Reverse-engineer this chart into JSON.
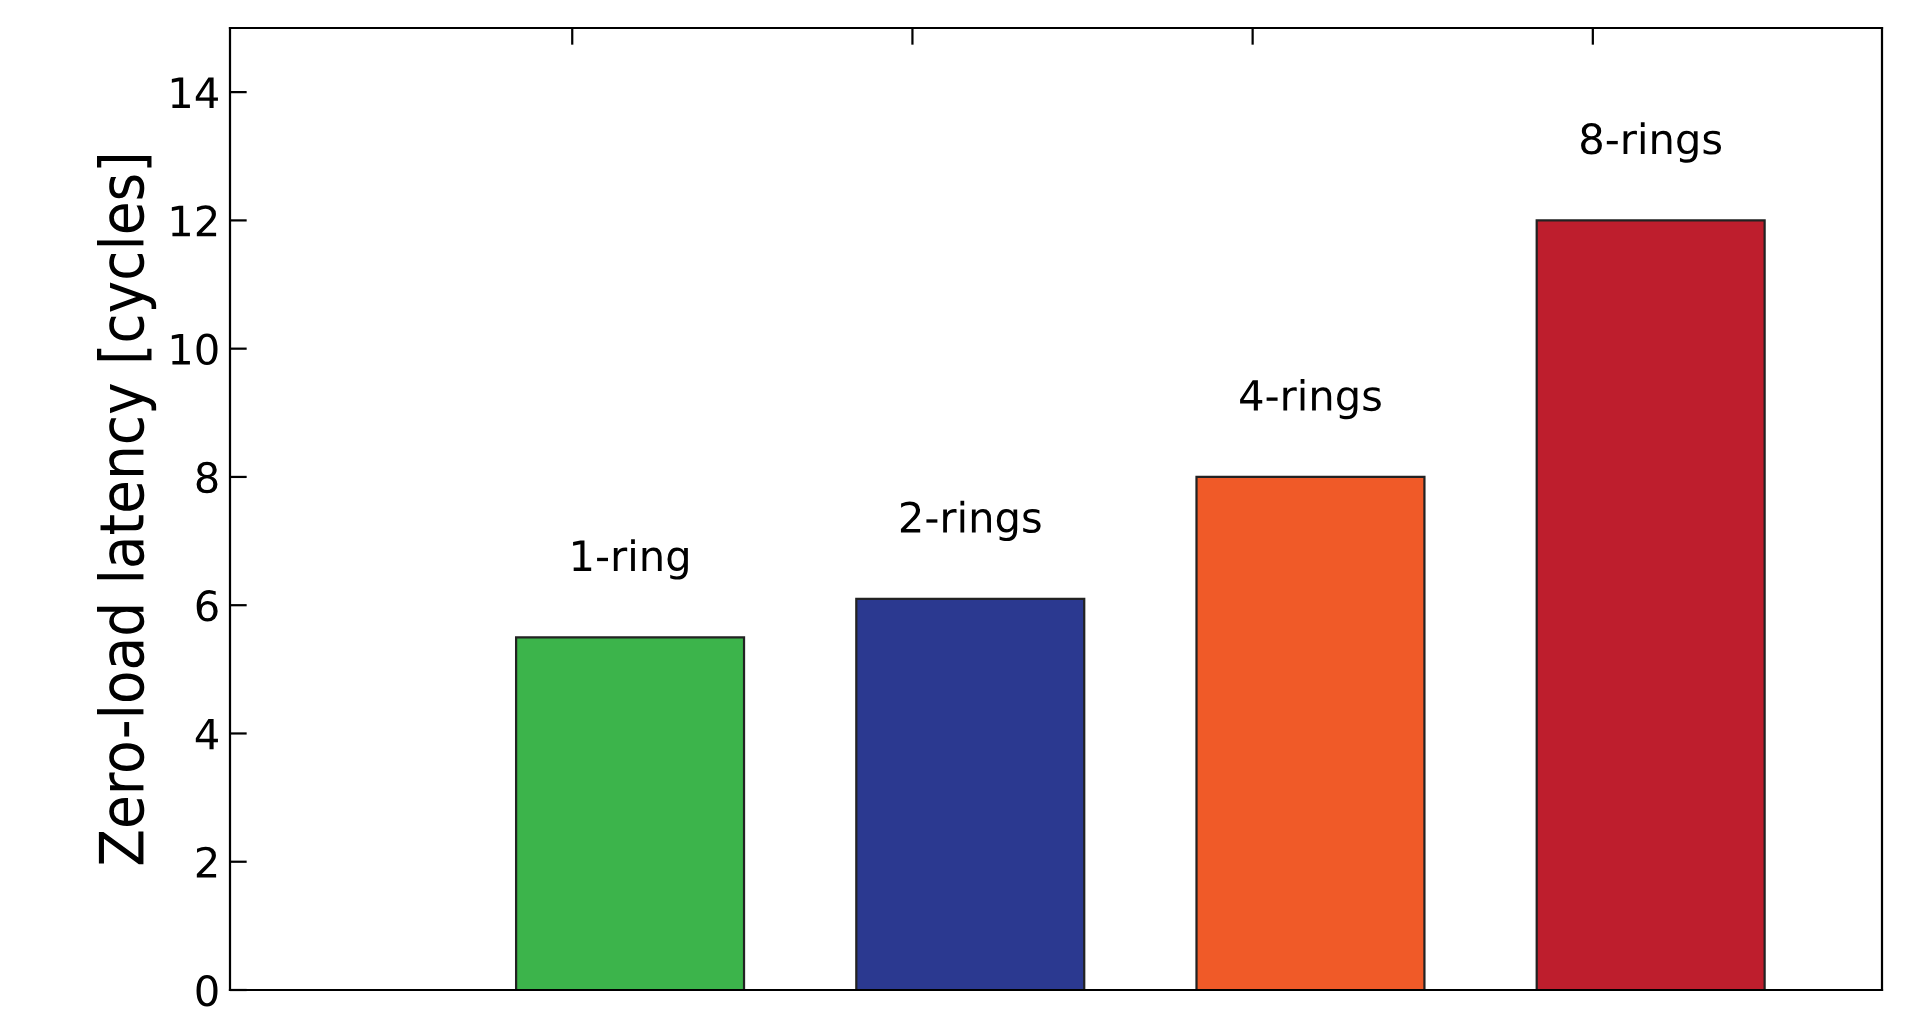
{
  "chart_data": {
    "type": "bar",
    "ylabel": "Zero-load latency [cycles]",
    "categories": [
      "1-ring",
      "2-rings",
      "4-rings",
      "8-rings"
    ],
    "values": [
      5.5,
      6.1,
      8,
      12
    ],
    "colors": [
      "#3cb44b",
      "#2b3990",
      "#f05a28",
      "#be1e2d"
    ],
    "ylim": [
      0,
      15
    ],
    "yticks": [
      0,
      2,
      4,
      6,
      8,
      10,
      12,
      14
    ],
    "grid": false,
    "legend": false
  }
}
